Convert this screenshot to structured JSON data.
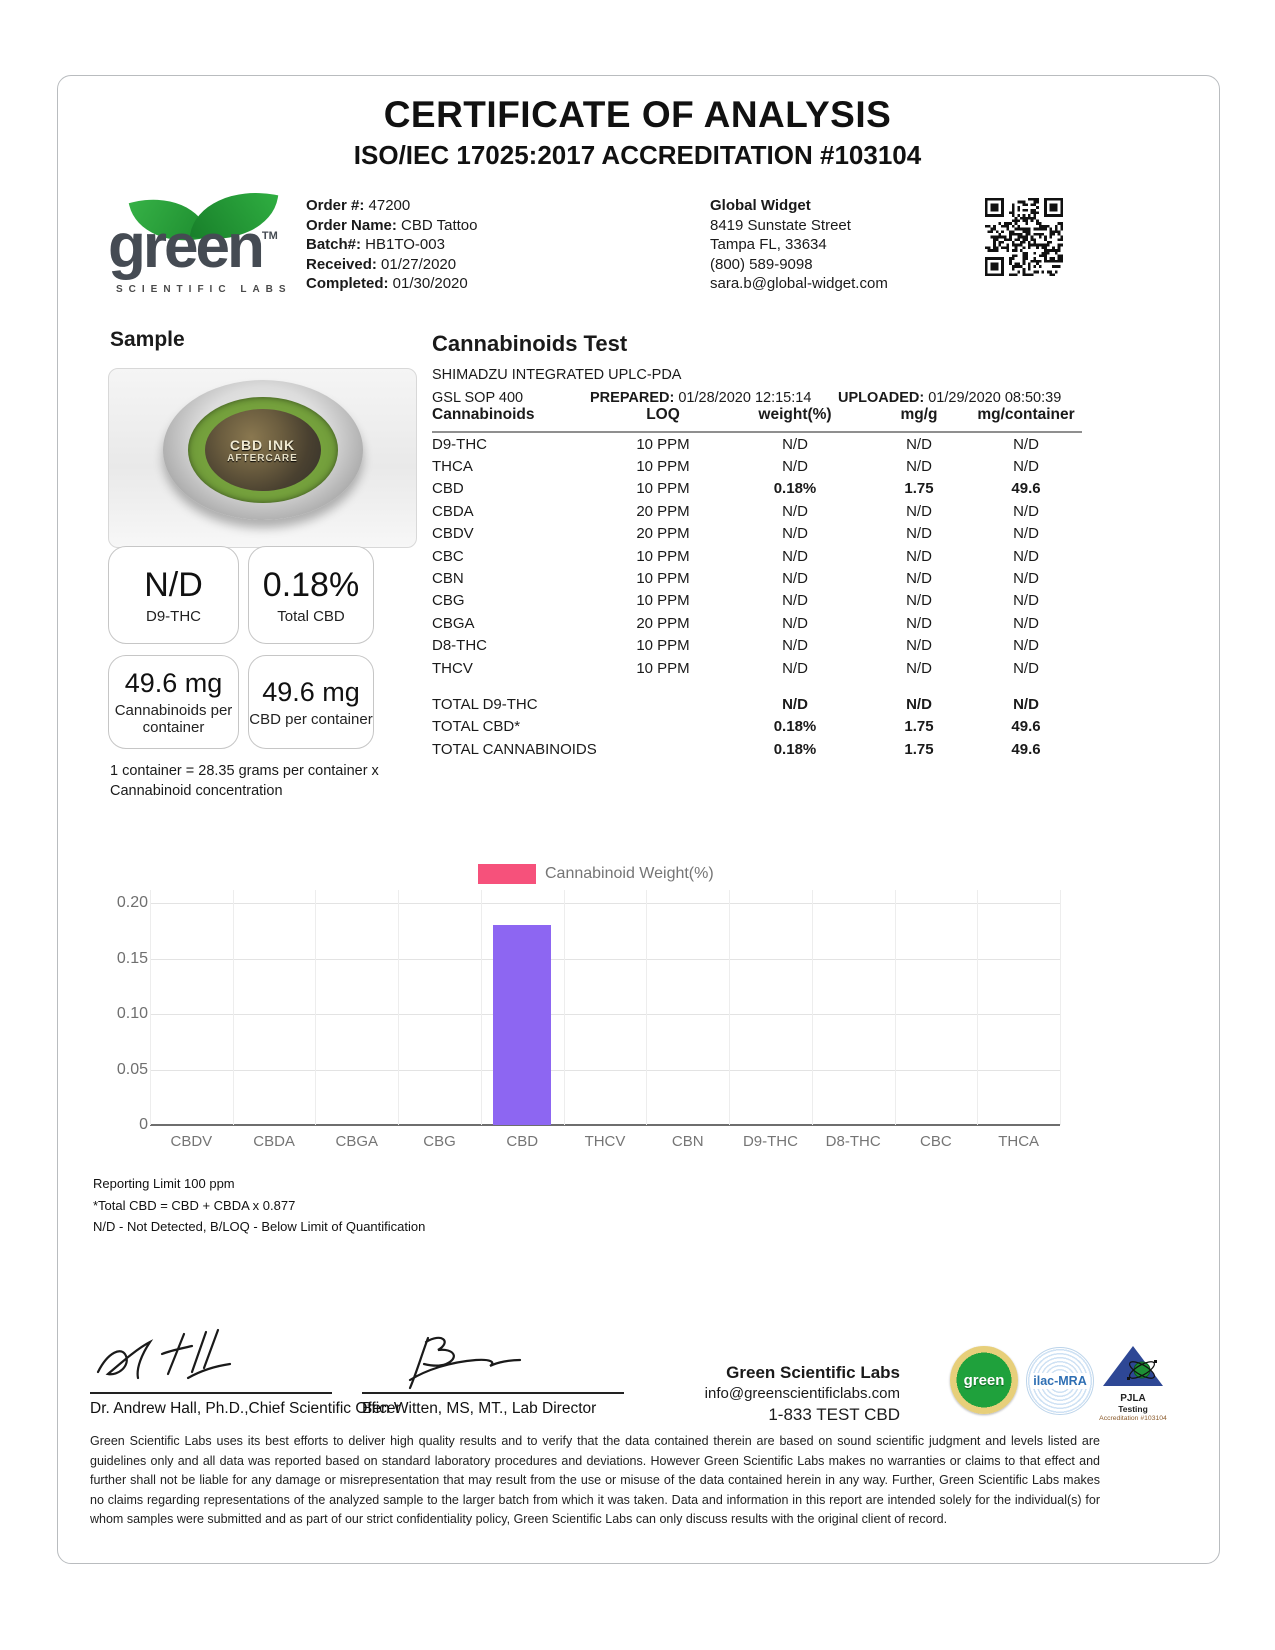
{
  "header": {
    "title": "CERTIFICATE OF ANALYSIS",
    "subtitle": "ISO/IEC 17025:2017 ACCREDITATION #103104"
  },
  "logo": {
    "brand": "green",
    "trademark": "TM",
    "tagline": "SCIENTIFIC LABS"
  },
  "order_info": [
    {
      "label": "Order #:",
      "value": "47200"
    },
    {
      "label": "Order Name:",
      "value": "CBD Tattoo"
    },
    {
      "label": "Batch#:",
      "value": "HB1TO-003"
    },
    {
      "label": "Received:",
      "value": "01/27/2020"
    },
    {
      "label": "Completed:",
      "value": "01/30/2020"
    }
  ],
  "client": {
    "name": "Global Widget",
    "lines": [
      "8419 Sunstate Street",
      "Tampa FL, 33634",
      "(800) 589-9098",
      "sara.b@global-widget.com"
    ]
  },
  "sample": {
    "heading": "Sample",
    "product_label_line1": "CBD INK",
    "product_label_line2": "AFTERCARE",
    "result_cards": [
      {
        "value": "N/D",
        "label": "D9-THC"
      },
      {
        "value": "0.18%",
        "label": "Total CBD"
      },
      {
        "value": "49.6 mg",
        "label": "Cannabinoids per container"
      },
      {
        "value": "49.6 mg",
        "label": "CBD per container"
      }
    ],
    "note_line1": "1 container = 28.35 grams per container x",
    "note_line2": "Cannabinoid concentration"
  },
  "test": {
    "heading": "Cannabinoids Test",
    "instrument": "SHIMADZU INTEGRATED UPLC-PDA",
    "sop": "GSL SOP 400",
    "prepared_label": "PREPARED:",
    "prepared_value": "01/28/2020 12:15:14",
    "uploaded_label": "UPLOADED:",
    "uploaded_value": "01/29/2020 08:50:39",
    "columns": [
      "Cannabinoids",
      "LOQ",
      "weight(%)",
      "mg/g",
      "mg/container"
    ],
    "rows": [
      {
        "name": "D9-THC",
        "loq": "10 PPM",
        "weight": "N/D",
        "mg_g": "N/D",
        "mg_container": "N/D",
        "bold": false
      },
      {
        "name": "THCA",
        "loq": "10 PPM",
        "weight": "N/D",
        "mg_g": "N/D",
        "mg_container": "N/D",
        "bold": false
      },
      {
        "name": "CBD",
        "loq": "10 PPM",
        "weight": "0.18%",
        "mg_g": "1.75",
        "mg_container": "49.6",
        "bold": true
      },
      {
        "name": "CBDA",
        "loq": "20 PPM",
        "weight": "N/D",
        "mg_g": "N/D",
        "mg_container": "N/D",
        "bold": false
      },
      {
        "name": "CBDV",
        "loq": "20 PPM",
        "weight": "N/D",
        "mg_g": "N/D",
        "mg_container": "N/D",
        "bold": false
      },
      {
        "name": "CBC",
        "loq": "10 PPM",
        "weight": "N/D",
        "mg_g": "N/D",
        "mg_container": "N/D",
        "bold": false
      },
      {
        "name": "CBN",
        "loq": "10 PPM",
        "weight": "N/D",
        "mg_g": "N/D",
        "mg_container": "N/D",
        "bold": false
      },
      {
        "name": "CBG",
        "loq": "10 PPM",
        "weight": "N/D",
        "mg_g": "N/D",
        "mg_container": "N/D",
        "bold": false
      },
      {
        "name": "CBGA",
        "loq": "20 PPM",
        "weight": "N/D",
        "mg_g": "N/D",
        "mg_container": "N/D",
        "bold": false
      },
      {
        "name": "D8-THC",
        "loq": "10 PPM",
        "weight": "N/D",
        "mg_g": "N/D",
        "mg_container": "N/D",
        "bold": false
      },
      {
        "name": "THCV",
        "loq": "10 PPM",
        "weight": "N/D",
        "mg_g": "N/D",
        "mg_container": "N/D",
        "bold": false
      }
    ],
    "totals": [
      {
        "name": "TOTAL D9-THC",
        "weight": "N/D",
        "mg_g": "N/D",
        "mg_container": "N/D"
      },
      {
        "name": "TOTAL CBD*",
        "weight": "0.18%",
        "mg_g": "1.75",
        "mg_container": "49.6"
      },
      {
        "name": "TOTAL CANNABINOIDS",
        "weight": "0.18%",
        "mg_g": "1.75",
        "mg_container": "49.6"
      }
    ]
  },
  "chart_data": {
    "type": "bar",
    "title": "",
    "legend": "Cannabinoid Weight(%)",
    "legend_swatch_color": "#f6517b",
    "bar_color": "#8d66f2",
    "categories": [
      "CBDV",
      "CBDA",
      "CBGA",
      "CBG",
      "CBD",
      "THCV",
      "CBN",
      "D9-THC",
      "D8-THC",
      "CBC",
      "THCA"
    ],
    "values": [
      0,
      0,
      0,
      0,
      0.18,
      0,
      0,
      0,
      0,
      0,
      0
    ],
    "xlabel": "",
    "ylabel": "",
    "ylim": [
      0,
      0.2
    ],
    "yticks": [
      "0.20",
      "0.15",
      "0.10",
      "0.05",
      "0"
    ],
    "grid": true,
    "legend_position": "top"
  },
  "footnotes": [
    "Reporting Limit 100 ppm",
    "*Total CBD = CBD + CBDA x 0.877",
    "N/D - Not Detected, B/LOQ - Below Limit of Quantification"
  ],
  "signatures": [
    {
      "title": "Dr. Andrew Hall, Ph.D.,Chief Scientific Officer"
    },
    {
      "title": "Ben Witten, MS, MT., Lab Director"
    }
  ],
  "lab_contact": {
    "name": "Green Scientific Labs",
    "email": "info@greenscientificlabs.com",
    "phone": "1-833 TEST CBD"
  },
  "seals": {
    "green_seal_text": "green",
    "ilac_text": "ilac-MRA",
    "pjla_line1": "PJLA",
    "pjla_line2": "Testing",
    "pjla_line3": "Accreditation #103104"
  },
  "disclaimer": "Green Scientific Labs uses its best efforts to deliver high quality results and to verify that the data contained therein are based on sound scientific judgment and levels listed are guidelines only and all data was reported based on standard laboratory procedures and deviations. However Green Scientific Labs makes no warranties or claims to that effect and further shall not be liable for any damage or misrepresentation that may result from the use or misuse of the data contained herein in any way. Further, Green Scientific Labs makes no claims regarding representations of the analyzed sample to the larger batch from which it was taken. Data and information in this report are intended solely for the individual(s) for whom samples were submitted and as part of our strict confidentiality policy, Green Scientific Labs can only discuss results with the original client of record."
}
